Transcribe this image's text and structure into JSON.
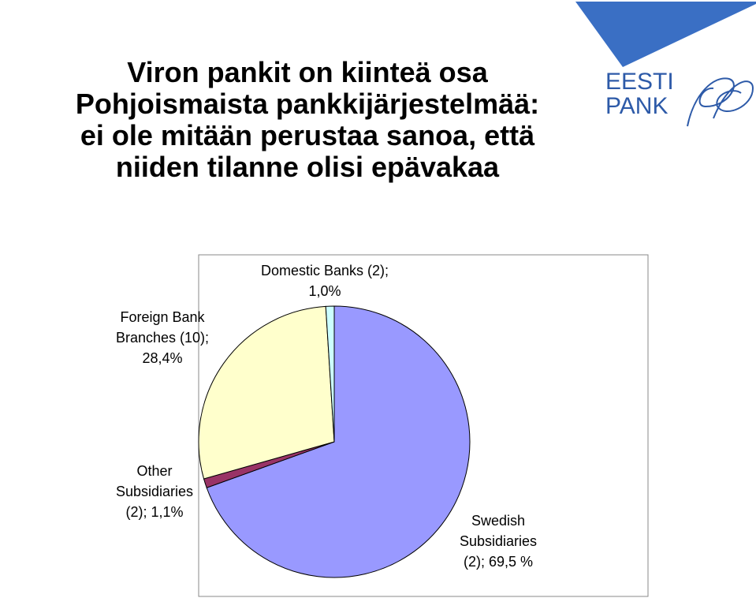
{
  "chart_data": {
    "type": "pie",
    "title": [
      "Viron pankit on kiinteä osa",
      "Pohjoismaista pankkijärjestelmää:",
      "ei ole mitään perustaa sanoa, että",
      "niiden tilanne olisi epävakaa"
    ],
    "values": [
      69.5,
      1.1,
      28.4,
      1.0
    ],
    "value_labels": [
      "Swedish Subsidiaries (2); 69,5 %",
      "Other Subsidiaries (2); 1,1%",
      "Foreign Bank Branches (10); 28,4%",
      "Domestic Banks (2); 1,0%"
    ],
    "colors": [
      "#9999ff",
      "#993366",
      "#ffffcc",
      "#ccffff"
    ]
  },
  "logo": {
    "line1": "EESTI",
    "line2": "PANK"
  }
}
